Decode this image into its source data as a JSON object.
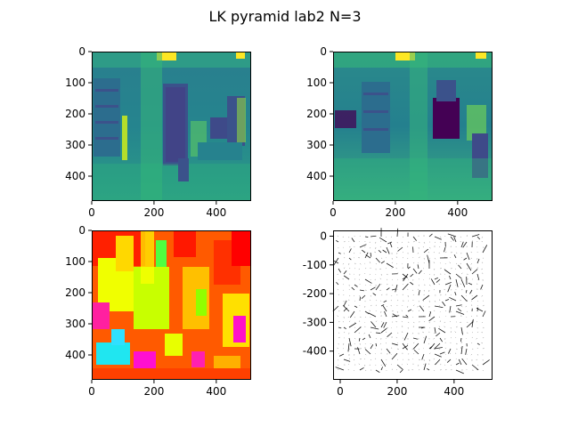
{
  "chart_data": {
    "title": "LK pyramid lab2 N=3",
    "grid": false,
    "panels": [
      {
        "type": "image",
        "colormap": "viridis",
        "xlim": [
          0,
          512
        ],
        "ylim": [
          480,
          0
        ],
        "xticks": [
          0,
          200,
          400
        ],
        "yticks": [
          0,
          100,
          200,
          300,
          400
        ]
      },
      {
        "type": "image",
        "colormap": "viridis",
        "xlim": [
          0,
          512
        ],
        "ylim": [
          480,
          0
        ],
        "xticks": [
          0,
          200,
          400
        ],
        "yticks": [
          0,
          100,
          200,
          300,
          400
        ]
      },
      {
        "type": "image",
        "colormap": "hsv",
        "xlim": [
          0,
          512
        ],
        "ylim": [
          480,
          0
        ],
        "xticks": [
          0,
          200,
          400
        ],
        "yticks": [
          0,
          100,
          200,
          300,
          400
        ]
      },
      {
        "type": "quiver",
        "color": "#000000",
        "xlim": [
          -25,
          535
        ],
        "ylim": [
          -500,
          20
        ],
        "xticks": [
          0,
          200,
          400
        ],
        "yticks": [
          0,
          -100,
          -200,
          -300,
          -400
        ]
      }
    ]
  }
}
